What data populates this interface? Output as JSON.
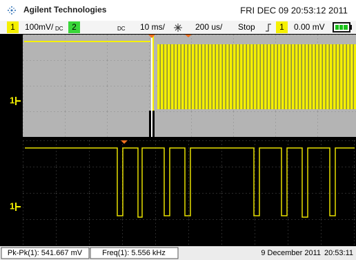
{
  "header": {
    "brand": "Agilent Technologies",
    "datetime": "FRI DEC 09 20:53:12 2011"
  },
  "status": {
    "channel1": "1",
    "scale1": "100mV/",
    "coupling1": "DC",
    "channel2": "2",
    "coupling2": "DC",
    "timebase": "10 ms/",
    "zoom_timebase": "200 us/",
    "run_state": "Stop",
    "trigger_source": "1",
    "trigger_level": "0.00 mV"
  },
  "display": {
    "main_marker": "1",
    "zoom_marker": "1"
  },
  "footer": {
    "measurement1": "Pk-Pk(1): 541.667 mV",
    "measurement2": "Freq(1): 5.556 kHz",
    "date": "9 December 2011",
    "time": "20:53:11"
  }
}
